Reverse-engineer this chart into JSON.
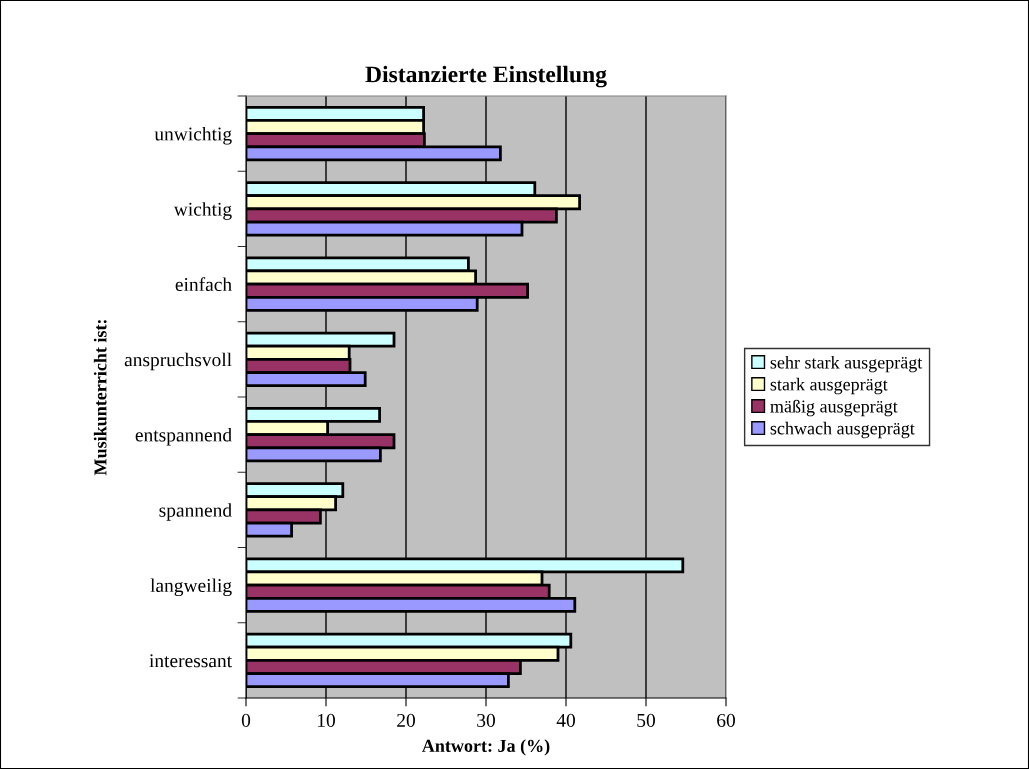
{
  "chart_data": {
    "type": "bar",
    "orientation": "horizontal",
    "title": "Distanzierte Einstellung",
    "xlabel": "Antwort: Ja (%)",
    "ylabel": "Musikunterricht ist:",
    "categories": [
      "unwichtig",
      "wichtig",
      "einfach",
      "anspruchsvoll",
      "entspannend",
      "spannend",
      "langweilig",
      "interessant"
    ],
    "series": [
      {
        "name": "sehr stark ausgeprägt",
        "color": "#ccffff",
        "values": [
          22.2,
          36.1,
          27.8,
          18.5,
          16.7,
          12.1,
          54.6,
          40.6
        ]
      },
      {
        "name": "stark ausgeprägt",
        "color": "#ffffcc",
        "values": [
          22.2,
          41.7,
          28.7,
          12.9,
          10.2,
          11.2,
          37.0,
          39.0
        ]
      },
      {
        "name": "mäßig ausgeprägt",
        "color": "#993366",
        "values": [
          22.3,
          38.8,
          35.2,
          13.0,
          18.5,
          9.3,
          37.9,
          34.3
        ]
      },
      {
        "name": "schwach ausgeprägt",
        "color": "#9999ff",
        "values": [
          31.8,
          34.5,
          28.9,
          14.9,
          16.8,
          5.7,
          41.1,
          32.8
        ]
      }
    ],
    "xlim": [
      0,
      60
    ],
    "xticks": [
      0,
      10,
      20,
      30,
      40,
      50,
      60
    ],
    "grid": "x",
    "legend": "right"
  }
}
